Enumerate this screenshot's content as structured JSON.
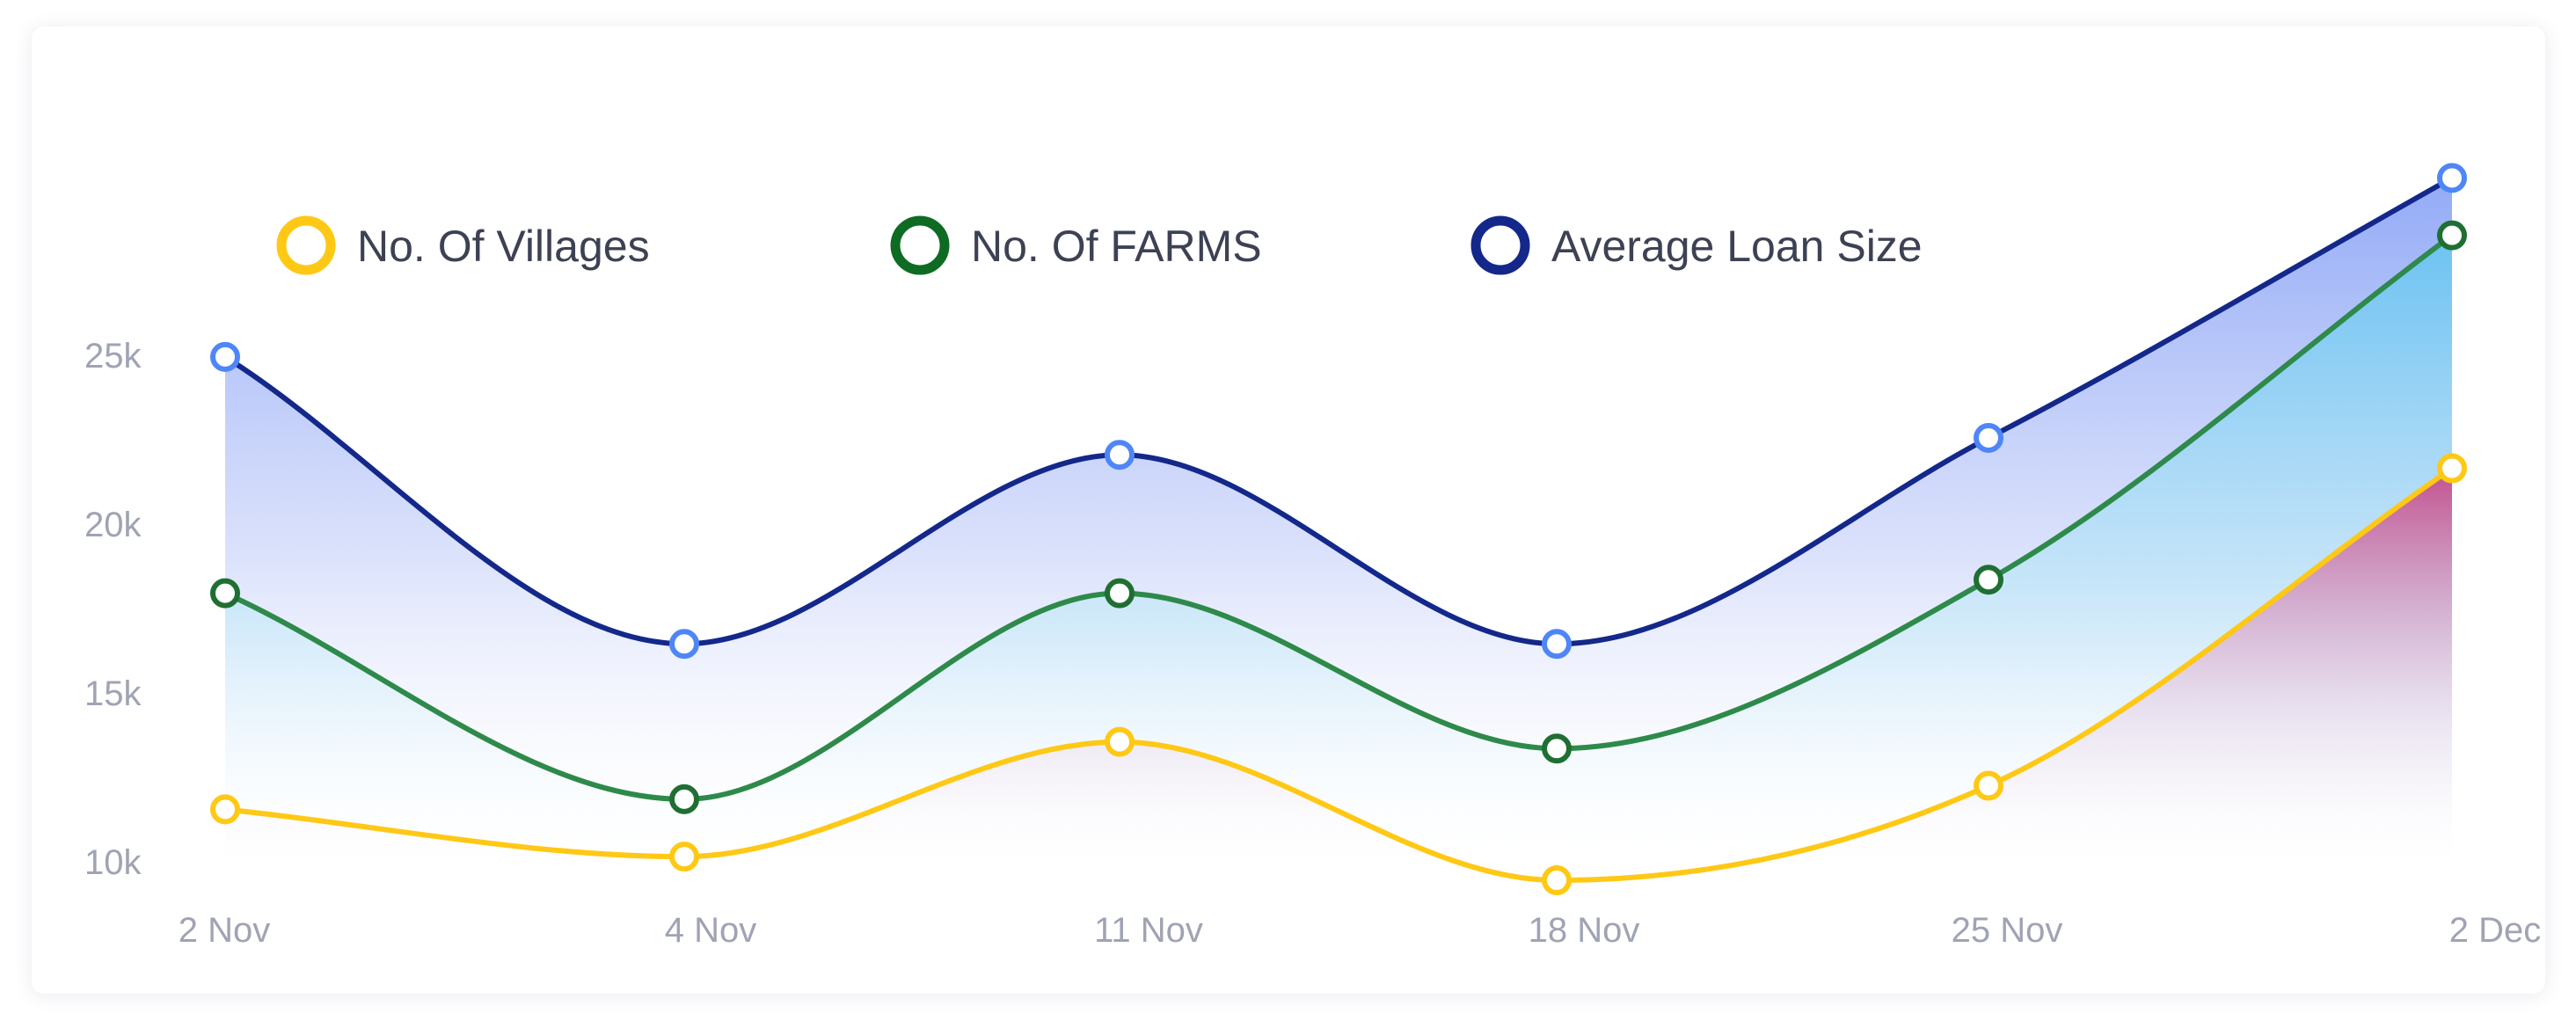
{
  "chart_data": {
    "type": "area",
    "categories": [
      "2 Nov",
      "4 Nov",
      "11 Nov",
      "18 Nov",
      "25 Nov",
      "2 Dec"
    ],
    "y_ticks": [
      "10k",
      "15k",
      "20k",
      "25k"
    ],
    "ylim": [
      9000,
      30000
    ],
    "grid": false,
    "legend_position": "top",
    "series": [
      {
        "name": "No. Of Villages",
        "color": "#ffc815",
        "values": [
          11500,
          10100,
          13500,
          9400,
          12200,
          21600
        ]
      },
      {
        "name": "No. Of FARMS",
        "color": "#0e6b23",
        "values": [
          17900,
          11800,
          17900,
          13300,
          18300,
          28500
        ]
      },
      {
        "name": "Average Loan Size",
        "color": "#13288a",
        "values": [
          24900,
          16400,
          22000,
          16400,
          22500,
          30200
        ]
      }
    ]
  }
}
